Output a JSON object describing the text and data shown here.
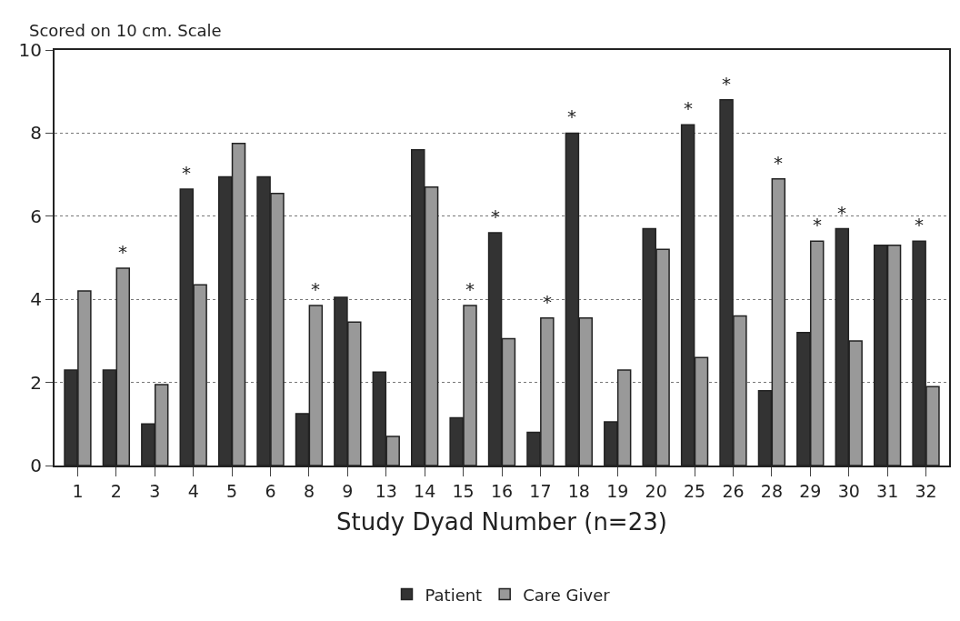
{
  "chart_data": {
    "type": "bar",
    "ylabel": "Scored on 10 cm. Scale",
    "xlabel": "Study Dyad Number (n=23)",
    "categories": [
      "1",
      "2",
      "3",
      "4",
      "5",
      "6",
      "8",
      "9",
      "13",
      "14",
      "15",
      "16",
      "17",
      "18",
      "19",
      "20",
      "25",
      "26",
      "28",
      "29",
      "30",
      "31",
      "32"
    ],
    "series": [
      {
        "name": "Patient",
        "color": "#333333",
        "values": [
          2.3,
          2.3,
          1.0,
          6.65,
          6.95,
          6.95,
          1.25,
          4.05,
          2.25,
          7.6,
          1.15,
          5.6,
          0.8,
          8.0,
          1.05,
          5.7,
          8.2,
          8.8,
          1.8,
          3.2,
          5.7,
          5.3,
          5.4
        ]
      },
      {
        "name": "Care Giver",
        "color": "#999999",
        "values": [
          4.2,
          4.75,
          1.95,
          4.35,
          7.75,
          6.55,
          3.85,
          3.45,
          0.7,
          6.7,
          3.85,
          3.05,
          3.55,
          3.55,
          2.3,
          5.2,
          2.6,
          3.6,
          6.9,
          5.4,
          3.0,
          5.3,
          1.9
        ]
      }
    ],
    "ylim": [
      0,
      10
    ],
    "yticks": [
      0,
      2,
      4,
      6,
      8,
      10
    ],
    "grid": "y",
    "legend": "bottom",
    "annotations": [
      {
        "text": "*",
        "x": "2",
        "y": 4.75
      },
      {
        "text": "*",
        "x": "4",
        "y": 6.65
      },
      {
        "text": "*",
        "x": "8",
        "y": 3.85
      },
      {
        "text": "*",
        "x": "15",
        "y": 3.85
      },
      {
        "text": "*",
        "x": "16",
        "y": 5.6
      },
      {
        "text": "*",
        "x": "17",
        "y": 3.55
      },
      {
        "text": "*",
        "x": "18",
        "y": 8.0
      },
      {
        "text": "*",
        "x": "25",
        "y": 8.2
      },
      {
        "text": "*",
        "x": "26",
        "y": 8.8
      },
      {
        "text": "*",
        "x": "28",
        "y": 6.9
      },
      {
        "text": "*",
        "x": "29",
        "y": 5.4
      },
      {
        "text": "*",
        "x": "30",
        "y": 5.7
      },
      {
        "text": "*",
        "x": "32",
        "y": 5.4
      }
    ]
  }
}
